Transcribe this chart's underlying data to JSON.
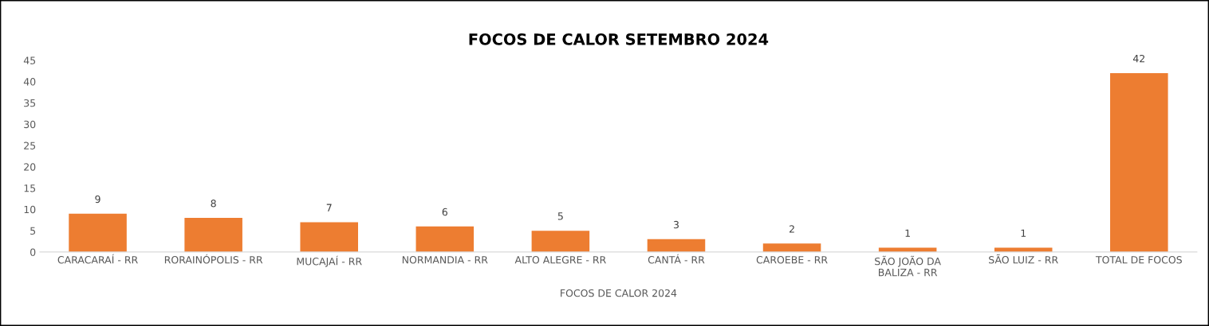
{
  "chart_data": {
    "type": "bar",
    "title": "FOCOS DE CALOR SETEMBRO 2024",
    "xlabel": "FOCOS DE CALOR 2024",
    "categories": [
      "CARACARAÍ - RR",
      "RORAINÓPOLIS - RR",
      "MUCAJAÍ - RR",
      "NORMANDIA - RR",
      "ALTO ALEGRE - RR",
      "CANTÁ - RR",
      "CAROEBE - RR",
      "SÃO JOÃO DA\nBALIZA - RR",
      "SÃO LUIZ - RR",
      "TOTAL DE FOCOS"
    ],
    "values": [
      9,
      8,
      7,
      6,
      5,
      3,
      2,
      1,
      1,
      42
    ],
    "color": "#ed7d31",
    "ylim": [
      0,
      45
    ],
    "yticks": [
      0,
      5,
      10,
      15,
      20,
      25,
      30,
      35,
      40,
      45
    ],
    "grid": false,
    "legend": false,
    "data_labels": true
  }
}
